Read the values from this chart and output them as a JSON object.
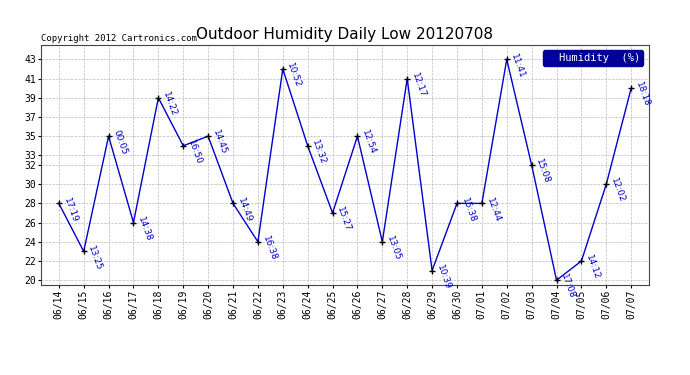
{
  "title": "Outdoor Humidity Daily Low 20120708",
  "copyright": "Copyright 2012 Cartronics.com",
  "legend_label": "Humidity  (%)",
  "line_color": "#0000cc",
  "bg_color": "#ffffff",
  "plot_bg_color": "#ffffff",
  "grid_color": "#bbbbbb",
  "dates": [
    "06/14",
    "06/15",
    "06/16",
    "06/17",
    "06/18",
    "06/19",
    "06/20",
    "06/21",
    "06/22",
    "06/23",
    "06/24",
    "06/25",
    "06/26",
    "06/27",
    "06/28",
    "06/29",
    "06/30",
    "07/01",
    "07/02",
    "07/03",
    "07/04",
    "07/05",
    "07/06",
    "07/07"
  ],
  "values": [
    28,
    23,
    35,
    26,
    39,
    34,
    35,
    28,
    24,
    42,
    34,
    27,
    35,
    24,
    41,
    21,
    28,
    28,
    43,
    32,
    20,
    22,
    30,
    40
  ],
  "times": [
    "17:19",
    "13:25",
    "00:05",
    "14:38",
    "14:22",
    "16:50",
    "14:45",
    "14:49",
    "16:38",
    "10:52",
    "13:32",
    "15:27",
    "12:54",
    "13:05",
    "12:17",
    "10:39",
    "15:38",
    "12:44",
    "11:41",
    "15:08",
    "17:08",
    "14:12",
    "12:02",
    "18:18"
  ],
  "ylim": [
    19.5,
    44.5
  ],
  "yticks": [
    20,
    22,
    24,
    26,
    28,
    30,
    32,
    33,
    35,
    37,
    39,
    41,
    43
  ],
  "title_fontsize": 11,
  "tick_fontsize": 7,
  "annot_fontsize": 6.5,
  "marker_size": 5,
  "line_width": 1.0
}
